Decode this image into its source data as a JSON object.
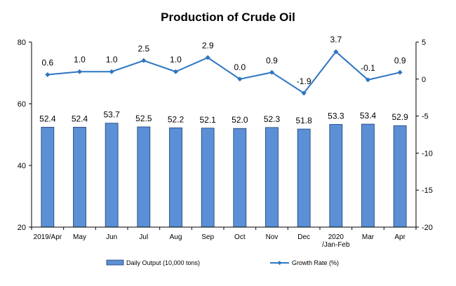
{
  "chart_data": {
    "type": "bar",
    "title": "Production of Crude Oil",
    "categories": [
      "2019/Apr",
      "May",
      "Jun",
      "Jul",
      "Aug",
      "Sep",
      "Oct",
      "Nov",
      "Dec",
      "2020\n/Jan-Feb",
      "Mar",
      "Apr"
    ],
    "series": [
      {
        "name": "Daily Output (10,000 tons)",
        "type": "bar",
        "axis": "left",
        "values": [
          52.4,
          52.4,
          53.7,
          52.5,
          52.2,
          52.1,
          52.0,
          52.3,
          51.8,
          53.3,
          53.4,
          52.9
        ],
        "labels": [
          "52.4",
          "52.4",
          "53.7",
          "52.5",
          "52.2",
          "52.1",
          "52.0",
          "52.3",
          "51.8",
          "53.3",
          "53.4",
          "52.9"
        ]
      },
      {
        "name": "Growth Rate (%)",
        "type": "line",
        "axis": "right",
        "values": [
          0.6,
          1.0,
          1.0,
          2.5,
          1.0,
          2.9,
          0.0,
          0.9,
          -1.9,
          3.7,
          -0.1,
          0.9
        ],
        "labels": [
          "0.6",
          "1.0",
          "1.0",
          "2.5",
          "1.0",
          "2.9",
          "0.0",
          "0.9",
          "-1.9",
          "3.7",
          "-0.1",
          "0.9"
        ]
      }
    ],
    "y_left": {
      "ylim": [
        20,
        80
      ],
      "ticks": [
        "20",
        "40",
        "60",
        "80"
      ]
    },
    "y_right": {
      "ylim": [
        -20,
        5
      ],
      "ticks": [
        "5",
        "0",
        "-5",
        "-10",
        "-15",
        "-20"
      ]
    },
    "grid": false,
    "legend_position": "bottom",
    "colors": {
      "bar_fill": "#5b8fd6",
      "bar_edge": "#1f3f73",
      "line": "#2e75c0",
      "axis": "#000000"
    }
  }
}
